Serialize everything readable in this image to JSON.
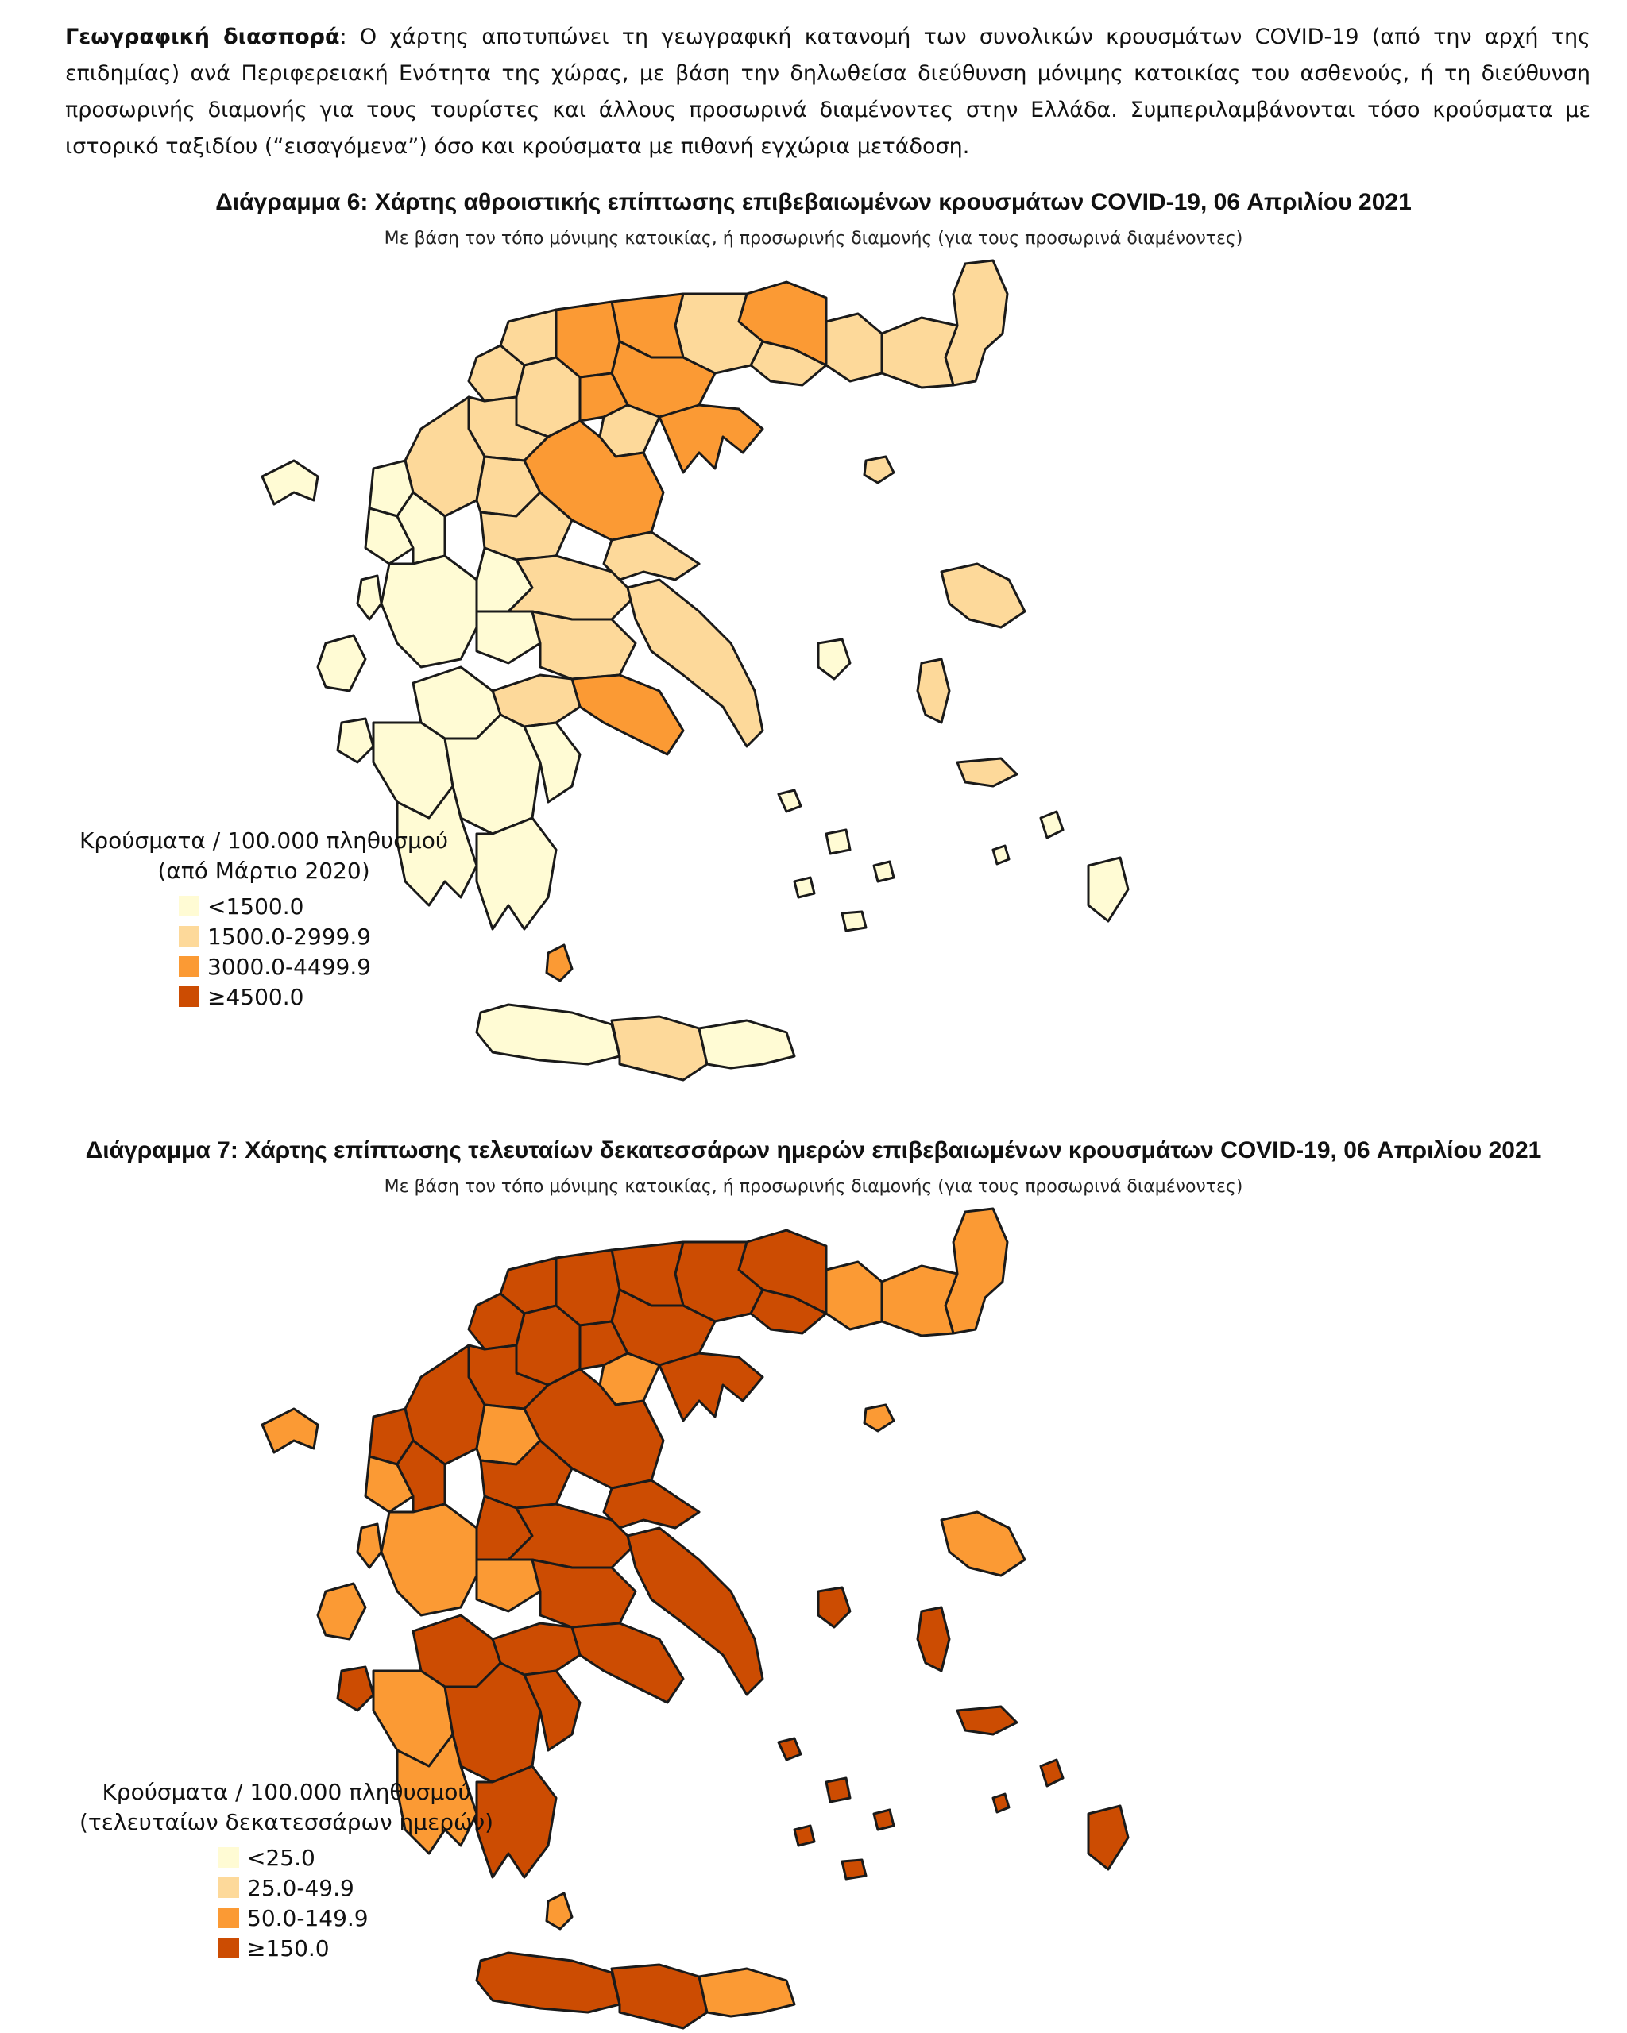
{
  "intro": {
    "lead": "Γεωγραφική διασπορά",
    "text": ": Ο χάρτης αποτυπώνει τη γεωγραφική κατανομή των συνολικών κρουσμάτων COVID-19 (από την αρχή της επιδημίας) ανά Περιφερειακή Ενότητα της χώρας, με βάση την δηλωθείσα διεύθυνση μόνιμης κατοικίας του ασθενούς, ή τη διεύθυνση προσωρινής διαμονής για τους τουρίστες και άλλους προσωρινά διαμένοντες στην Ελλάδα. Συμπεριλαμβάνονται τόσο κρούσματα με ιστορικό ταξιδίου (“εισαγόμενα”) όσο και κρούσματα με πιθανή εγχώρια μετάδοση."
  },
  "colors": {
    "c1": "#fffbd4",
    "c2": "#fdd99a",
    "c3": "#fb9a34",
    "c4": "#cc4c02"
  },
  "fig6": {
    "title": "Διάγραμμα 6: Χάρτης αθροιστικής επίπτωσης επιβεβαιωμένων κρουσμάτων COVID-19, 06 Απριλίου 2021",
    "subtitle": "Με βάση τον τόπο μόνιμης κατοικίας, ή προσωρινής διαμονής (για τους προσωρινά διαμένοντες)",
    "legend_title_1": "Κρούσματα / 100.000 πληθυσμού",
    "legend_title_2": "(από Μάρτιο 2020)",
    "classes": [
      "<1500.0",
      "1500.0-2999.9",
      "3000.0-4499.9",
      "≥4500.0"
    ],
    "region_classes": {
      "thrace": 1,
      "rhodope": 1,
      "xanthi": 1,
      "drama": 2,
      "kavala": 1,
      "serres": 1,
      "thessaloniki": 2,
      "halkidiki": 2,
      "kilkis": 2,
      "pella": 2,
      "florina": 1,
      "kastoria": 1,
      "kozani": 1,
      "imathia": 2,
      "pieria": 1,
      "larisa": 2,
      "magnesia": 1,
      "trikala": 1,
      "karditsa": 1,
      "grevena": 1,
      "ioannina": 1,
      "thesprotia": 0,
      "preveza": 0,
      "arta": 0,
      "aitoloakarnania": 0,
      "evrytania": 0,
      "fthiotida": 1,
      "fokida": 0,
      "viotia": 1,
      "evia": 1,
      "attica": 2,
      "achaia": 0,
      "ilia": 0,
      "arcadia": 0,
      "messinia": 0,
      "lakonia": 0,
      "argolida": 0,
      "korinthia": 1,
      "kerkyra": 0,
      "kefalonia": 0,
      "zakynthos": 0,
      "lefkada": 0,
      "crete_w": 0,
      "crete_c": 1,
      "crete_e": 0,
      "lesvos": 1,
      "chios": 1,
      "samos": 1,
      "dodecanese": 0,
      "cyclades": 0,
      "kythira": 2,
      "skyros": 0,
      "thasos": 1
    }
  },
  "fig7": {
    "title": "Διάγραμμα 7: Χάρτης επίπτωσης τελευταίων δεκατεσσάρων ημερών επιβεβαιωμένων κρουσμάτων COVID-19, 06 Απριλίου 2021",
    "subtitle": "Με βάση τον τόπο μόνιμης κατοικίας, ή προσωρινής διαμονής (για τους προσωρινά διαμένοντες)",
    "legend_title_1": "Κρούσματα / 100.000 πληθυσμού",
    "legend_title_2": "(τελευταίων δεκατεσσάρων ημερών)",
    "classes": [
      "<25.0",
      "25.0-49.9",
      "50.0-149.9",
      "≥150.0"
    ],
    "region_classes": {
      "thrace": 2,
      "rhodope": 2,
      "xanthi": 2,
      "drama": 3,
      "kavala": 3,
      "serres": 3,
      "thessaloniki": 3,
      "halkidiki": 3,
      "kilkis": 3,
      "pella": 3,
      "florina": 3,
      "kastoria": 3,
      "kozani": 3,
      "imathia": 3,
      "pieria": 2,
      "larisa": 3,
      "magnesia": 3,
      "trikala": 2,
      "karditsa": 3,
      "grevena": 3,
      "ioannina": 3,
      "thesprotia": 3,
      "preveza": 2,
      "arta": 3,
      "aitoloakarnania": 2,
      "evrytania": 3,
      "fthiotida": 3,
      "fokida": 2,
      "viotia": 3,
      "evia": 3,
      "attica": 3,
      "achaia": 3,
      "ilia": 2,
      "arcadia": 3,
      "messinia": 2,
      "lakonia": 3,
      "argolida": 3,
      "korinthia": 3,
      "kerkyra": 2,
      "kefalonia": 2,
      "zakynthos": 3,
      "lefkada": 2,
      "crete_w": 3,
      "crete_c": 3,
      "crete_e": 2,
      "lesvos": 2,
      "chios": 3,
      "samos": 3,
      "dodecanese": 3,
      "cyclades": 3,
      "kythira": 2,
      "skyros": 3,
      "thasos": 2
    }
  }
}
